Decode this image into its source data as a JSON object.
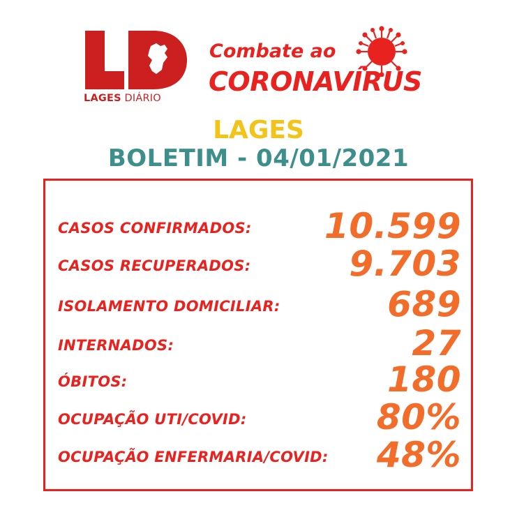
{
  "header": {
    "logo_mark": "LD",
    "logo_caption_bold": "LAGES",
    "logo_caption_regular": "DIÁRIO",
    "combate": "Combate ao",
    "coronavirus": "CORONAVÍRUS",
    "virus_icon": "coronavirus-icon"
  },
  "city": "LAGES",
  "bulletin": "BOLETIM - 04/01/2021",
  "stats": [
    {
      "label": "CASOS CONFIRMADOS:",
      "value": "10.599"
    },
    {
      "label": "CASOS RECUPERADOS:",
      "value": "9.703"
    },
    {
      "label": "ISOLAMENTO DOMICILIAR:",
      "value": "689"
    },
    {
      "label": "INTERNADOS:",
      "value": "27"
    },
    {
      "label": "ÓBITOS:",
      "value": "180"
    },
    {
      "label": "OCUPAÇÃO UTI/COVID:",
      "value": "80%"
    },
    {
      "label": "OCUPAÇÃO ENFERMARIA/COVID:",
      "value": "48%"
    }
  ],
  "colors": {
    "brand_red": "#e8231f",
    "value_orange": "#f26c2a",
    "city_yellow": "#f2c318",
    "bulletin_teal": "#3d8f8c"
  }
}
